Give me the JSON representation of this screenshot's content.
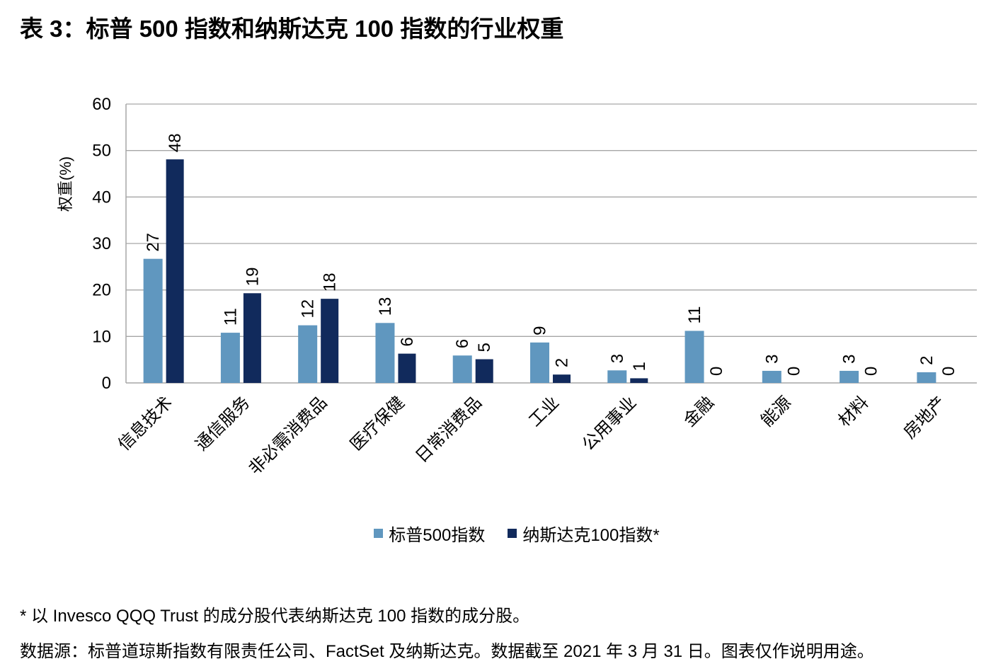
{
  "title": "表 3：标普 500 指数和纳斯达克 100 指数的行业权重",
  "chart_data": {
    "type": "bar",
    "ylabel": "权重(%)",
    "ylim": [
      0,
      60
    ],
    "yticks": [
      0,
      10,
      20,
      30,
      40,
      50,
      60
    ],
    "grid": true,
    "legend_position": "bottom",
    "categories": [
      "信息技术",
      "通信服务",
      "非必需消费品",
      "医疗保健",
      "日常消费品",
      "工业",
      "公用事业",
      "金融",
      "能源",
      "材料",
      "房地产"
    ],
    "series": [
      {
        "name": "标普500指数",
        "color": "#6097bf",
        "values": [
          26.7,
          10.8,
          12.4,
          12.9,
          5.9,
          8.7,
          2.7,
          11.2,
          2.6,
          2.6,
          2.3
        ],
        "labels": [
          "27",
          "11",
          "12",
          "13",
          "6",
          "9",
          "3",
          "11",
          "3",
          "3",
          "2"
        ]
      },
      {
        "name": "纳斯达克100指数*",
        "color": "#112a5c",
        "values": [
          48.1,
          19.3,
          18.1,
          6.3,
          5.1,
          1.8,
          1.0,
          0,
          0,
          0,
          0
        ],
        "labels": [
          "48",
          "19",
          "18",
          "6",
          "5",
          "2",
          "1",
          "0",
          "0",
          "0",
          "0"
        ]
      }
    ]
  },
  "footnote": "* 以 Invesco QQQ Trust 的成分股代表纳斯达克 100 指数的成分股。",
  "source": "数据源：标普道琼斯指数有限责任公司、FactSet 及纳斯达克。数据截至 2021 年 3 月 31 日。图表仅作说明用途。"
}
